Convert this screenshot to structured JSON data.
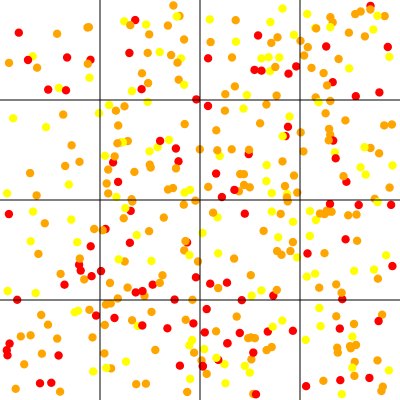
{
  "board": {
    "grid": {
      "rows": 4,
      "cols": 4,
      "line_color": "#000000"
    },
    "colors": {
      "red": "#ff0000",
      "orange": "#ffa500",
      "yellow": "#ffff00"
    },
    "dot_counts": {
      "red": 95,
      "orange": 200,
      "yellow": 110
    },
    "seed": 20240611
  }
}
